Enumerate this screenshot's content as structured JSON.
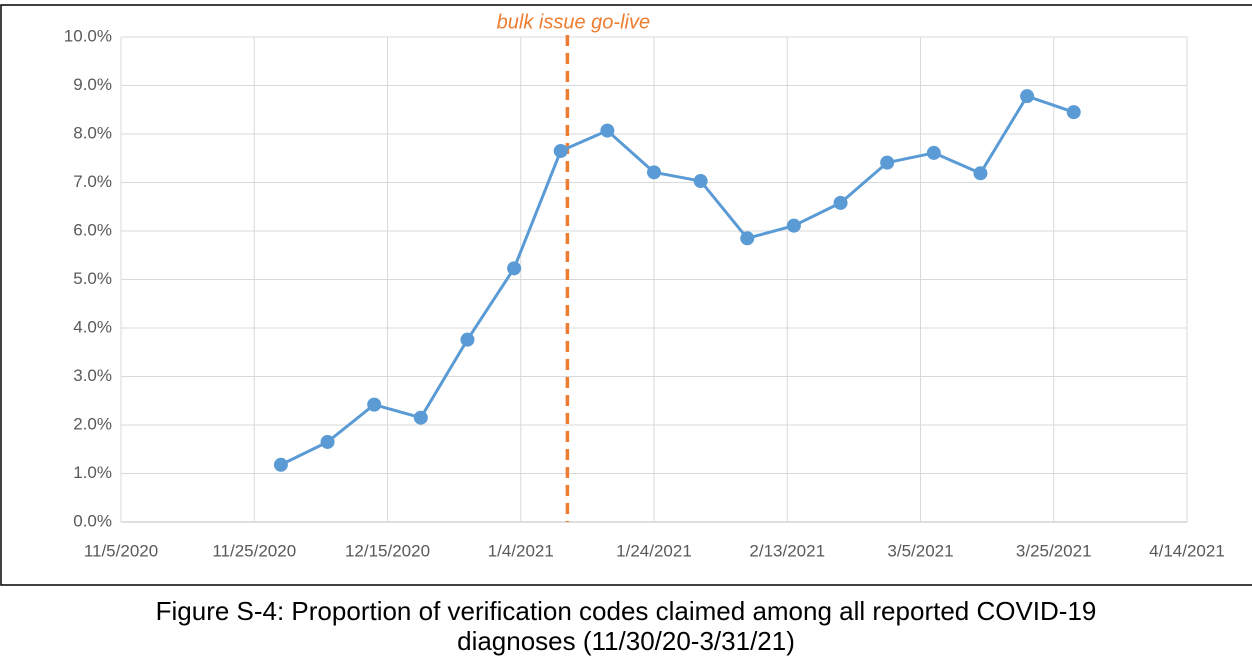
{
  "chart_data": {
    "type": "line",
    "x": [
      "11/29/2020",
      "12/6/2020",
      "12/13/2020",
      "12/20/2020",
      "12/27/2020",
      "1/3/2021",
      "1/10/2021",
      "1/17/2021",
      "1/24/2021",
      "1/31/2021",
      "2/7/2021",
      "2/14/2021",
      "2/21/2021",
      "2/28/2021",
      "3/7/2021",
      "3/14/2021",
      "3/21/2021",
      "3/28/2021"
    ],
    "series": [
      {
        "color": "#5b9bd5",
        "values": [
          1.18,
          1.65,
          2.42,
          2.15,
          3.76,
          5.23,
          7.65,
          8.07,
          7.21,
          7.03,
          5.85,
          6.11,
          6.58,
          7.41,
          7.61,
          7.19,
          8.78,
          8.45
        ]
      }
    ],
    "xlim": [
      "11/5/2020",
      "4/14/2021"
    ],
    "xticks": [
      "11/5/2020",
      "11/25/2020",
      "12/15/2020",
      "1/4/2021",
      "1/24/2021",
      "2/13/2021",
      "3/5/2021",
      "3/25/2021",
      "4/14/2021"
    ],
    "ylim": [
      0,
      10
    ],
    "yticks": [
      {
        "value": 0,
        "label": "0.0%"
      },
      {
        "value": 1,
        "label": "1.0%"
      },
      {
        "value": 2,
        "label": "2.0%"
      },
      {
        "value": 3,
        "label": "3.0%"
      },
      {
        "value": 4,
        "label": "4.0%"
      },
      {
        "value": 5,
        "label": "5.0%"
      },
      {
        "value": 6,
        "label": "6.0%"
      },
      {
        "value": 7,
        "label": "7.0%"
      },
      {
        "value": 8,
        "label": "8.0%"
      },
      {
        "value": 9,
        "label": "9.0%"
      },
      {
        "value": 10,
        "label": "10.0%"
      }
    ],
    "grid": true,
    "annotation": {
      "text": "bulk issue go-live",
      "x": "1/11/2021",
      "color": "#ed7d31"
    }
  },
  "caption_lines": [
    "Figure S-4: Proportion of verification codes claimed among all reported COVID-19",
    "diagnoses (11/30/20-3/31/21)"
  ]
}
